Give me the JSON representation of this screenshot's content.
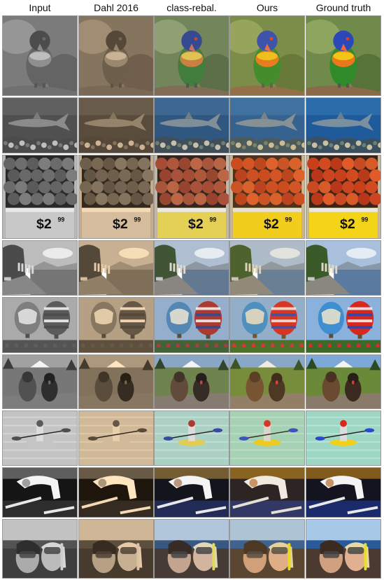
{
  "columns": [
    {
      "key": "input",
      "label": "Input",
      "mode": "gray"
    },
    {
      "key": "dahl",
      "label": "Dahl 2016",
      "mode": "sepia"
    },
    {
      "key": "classrebal",
      "label": "class-rebal.",
      "mode": "rebal"
    },
    {
      "key": "ours",
      "label": "Ours",
      "mode": "ours"
    },
    {
      "key": "gt",
      "label": "Ground truth",
      "mode": "full"
    }
  ],
  "rows": [
    {
      "subject": "parrot"
    },
    {
      "subject": "shark"
    },
    {
      "subject": "pomegranates"
    },
    {
      "subject": "harbor"
    },
    {
      "subject": "balloons"
    },
    {
      "subject": "dogs"
    },
    {
      "subject": "kayak"
    },
    {
      "subject": "gymnast"
    },
    {
      "subject": "divers"
    }
  ],
  "price_sign": {
    "price": "$2",
    "cents": "99"
  }
}
